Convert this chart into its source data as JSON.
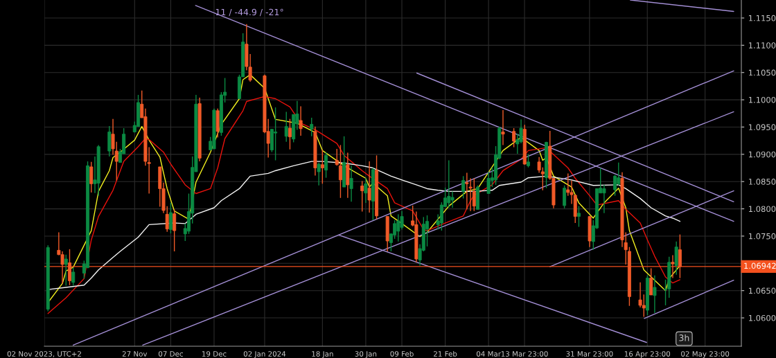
{
  "chart_data": {
    "type": "candlestick",
    "x": [
      "2023-11-03",
      "2023-11-06",
      "2023-11-07",
      "2023-11-08",
      "2023-11-09",
      "2023-11-10",
      "2023-11-13",
      "2023-11-14",
      "2023-11-15",
      "2023-11-16",
      "2023-11-17",
      "2023-11-20",
      "2023-11-21",
      "2023-11-22",
      "2023-11-23",
      "2023-11-24",
      "2023-11-27",
      "2023-11-28",
      "2023-11-29",
      "2023-11-30",
      "2023-12-01",
      "2023-12-04",
      "2023-12-05",
      "2023-12-06",
      "2023-12-07",
      "2023-12-08",
      "2023-12-11",
      "2023-12-12",
      "2023-12-13",
      "2023-12-14",
      "2023-12-15",
      "2023-12-18",
      "2023-12-19",
      "2023-12-20",
      "2023-12-21",
      "2023-12-22",
      "2023-12-26",
      "2023-12-27",
      "2023-12-28",
      "2023-12-29",
      "2024-01-02",
      "2024-01-03",
      "2024-01-04",
      "2024-01-05",
      "2024-01-08",
      "2024-01-09",
      "2024-01-10",
      "2024-01-11",
      "2024-01-12",
      "2024-01-15",
      "2024-01-16",
      "2024-01-17",
      "2024-01-18",
      "2024-01-19",
      "2024-01-22",
      "2024-01-23",
      "2024-01-24",
      "2024-01-25",
      "2024-01-26",
      "2024-01-29",
      "2024-01-30",
      "2024-01-31",
      "2024-02-01",
      "2024-02-02",
      "2024-02-05",
      "2024-02-06",
      "2024-02-07",
      "2024-02-08",
      "2024-02-09",
      "2024-02-12",
      "2024-02-13",
      "2024-02-14",
      "2024-02-15",
      "2024-02-16",
      "2024-02-19",
      "2024-02-20",
      "2024-02-21",
      "2024-02-22",
      "2024-02-23",
      "2024-02-26",
      "2024-02-27",
      "2024-02-28",
      "2024-02-29",
      "2024-03-01",
      "2024-03-04",
      "2024-03-05",
      "2024-03-06",
      "2024-03-07",
      "2024-03-08",
      "2024-03-11",
      "2024-03-12",
      "2024-03-13",
      "2024-03-14",
      "2024-03-15",
      "2024-03-18",
      "2024-03-19",
      "2024-03-20",
      "2024-03-21",
      "2024-03-22",
      "2024-03-25",
      "2024-03-26",
      "2024-03-27",
      "2024-03-28",
      "2024-03-29",
      "2024-04-01",
      "2024-04-02",
      "2024-04-03",
      "2024-04-04",
      "2024-04-05",
      "2024-04-08",
      "2024-04-09",
      "2024-04-10",
      "2024-04-11",
      "2024-04-12",
      "2024-04-15",
      "2024-04-16",
      "2024-04-17",
      "2024-04-18",
      "2024-04-19",
      "2024-04-22",
      "2024-04-23",
      "2024-04-24",
      "2024-04-25",
      "2024-04-26"
    ],
    "ohlc": [
      [
        1.0616,
        1.0733,
        1.0612,
        1.0729
      ],
      [
        1.0724,
        1.0757,
        1.0715,
        1.0716
      ],
      [
        1.0716,
        1.0722,
        1.0663,
        1.0698
      ],
      [
        1.0698,
        1.0716,
        1.0659,
        1.0708
      ],
      [
        1.0701,
        1.0726,
        1.066,
        1.0668
      ],
      [
        1.0665,
        1.0692,
        1.0659,
        1.0684
      ],
      [
        1.0682,
        1.0705,
        1.0672,
        1.0699
      ],
      [
        1.0692,
        1.0887,
        1.0691,
        1.0879
      ],
      [
        1.0877,
        1.0886,
        1.083,
        1.0846
      ],
      [
        1.0846,
        1.0896,
        1.0829,
        1.0853
      ],
      [
        1.0847,
        1.0917,
        1.0824,
        1.0914
      ],
      [
        1.0906,
        1.0952,
        1.0896,
        1.0941
      ],
      [
        1.0937,
        1.0965,
        1.0899,
        1.091
      ],
      [
        1.0906,
        1.0923,
        1.0852,
        1.0887
      ],
      [
        1.0885,
        1.091,
        1.0885,
        1.0905
      ],
      [
        1.0901,
        1.0948,
        1.0901,
        1.0937
      ],
      [
        1.0941,
        1.096,
        1.094,
        1.0953
      ],
      [
        1.0951,
        1.1009,
        1.0951,
        1.0995
      ],
      [
        1.0992,
        1.1017,
        1.0967,
        1.0967
      ],
      [
        1.0969,
        1.0984,
        1.0879,
        1.0887
      ],
      [
        1.0885,
        1.0913,
        1.0828,
        1.0883
      ],
      [
        1.0877,
        1.0877,
        1.0804,
        1.0837
      ],
      [
        1.0837,
        1.0848,
        1.0792,
        1.0797
      ],
      [
        1.079,
        1.0805,
        1.0758,
        1.0763
      ],
      [
        1.0762,
        1.0811,
        1.0755,
        1.0793
      ],
      [
        1.0791,
        1.0799,
        1.0722,
        1.076
      ],
      [
        1.0754,
        1.0773,
        1.0741,
        1.0764
      ],
      [
        1.0759,
        1.0828,
        1.0754,
        1.0795
      ],
      [
        1.0792,
        1.0896,
        1.0773,
        1.0876
      ],
      [
        1.0868,
        1.1009,
        1.0868,
        1.0992
      ],
      [
        1.0993,
        1.1004,
        1.0887,
        1.0893
      ],
      [
        1.0908,
        1.0932,
        1.0908,
        1.0924
      ],
      [
        1.091,
        1.0984,
        1.091,
        1.0981
      ],
      [
        1.098,
        1.0984,
        1.0931,
        1.0942
      ],
      [
        1.094,
        1.1014,
        1.0934,
        1.1009
      ],
      [
        1.1008,
        1.104,
        1.0995,
        1.1014
      ],
      [
        1.1002,
        1.1046,
        1.1002,
        1.1042
      ],
      [
        1.1042,
        1.1122,
        1.1042,
        1.1106
      ],
      [
        1.1102,
        1.1139,
        1.1054,
        1.1061
      ],
      [
        1.106,
        1.1084,
        1.1033,
        1.1036
      ],
      [
        1.1044,
        1.1046,
        1.0939,
        1.0941
      ],
      [
        1.0942,
        1.0965,
        1.0894,
        1.092
      ],
      [
        1.0908,
        1.0946,
        1.0904,
        1.0946
      ],
      [
        1.0939,
        1.0986,
        1.0889,
        1.0941
      ],
      [
        1.0933,
        1.0978,
        1.0923,
        1.0951
      ],
      [
        1.0948,
        1.0965,
        1.0909,
        1.0932
      ],
      [
        1.0928,
        1.0973,
        1.0922,
        1.0973
      ],
      [
        1.0956,
        1.0998,
        1.0945,
        1.0974
      ],
      [
        1.0962,
        1.0988,
        1.0934,
        1.0947
      ],
      [
        1.0946,
        1.0967,
        1.0933,
        1.0955
      ],
      [
        1.0942,
        1.0951,
        1.0861,
        1.0875
      ],
      [
        1.0868,
        1.0885,
        1.0843,
        1.0882
      ],
      [
        1.0881,
        1.0908,
        1.0846,
        1.0875
      ],
      [
        1.0871,
        1.0904,
        1.0857,
        1.0898
      ],
      [
        1.0889,
        1.091,
        1.0879,
        1.0881
      ],
      [
        1.0879,
        1.0917,
        1.082,
        1.0853
      ],
      [
        1.084,
        1.0933,
        1.084,
        1.0885
      ],
      [
        1.0881,
        1.0903,
        1.082,
        1.0844
      ],
      [
        1.0837,
        1.0879,
        1.0813,
        1.0856
      ],
      [
        1.0842,
        1.0851,
        1.0795,
        1.0833
      ],
      [
        1.0829,
        1.0857,
        1.0811,
        1.0846
      ],
      [
        1.0838,
        1.0887,
        1.0793,
        1.0816
      ],
      [
        1.0814,
        1.0875,
        1.0779,
        1.0872
      ],
      [
        1.0871,
        1.0898,
        1.0781,
        1.0787
      ],
      [
        1.0786,
        1.0786,
        1.0722,
        1.0741
      ],
      [
        1.0738,
        1.0755,
        1.0722,
        1.0754
      ],
      [
        1.0752,
        1.0779,
        1.0745,
        1.0773
      ],
      [
        1.0759,
        1.079,
        1.074,
        1.0778
      ],
      [
        1.0766,
        1.0796,
        1.0762,
        1.0786
      ],
      [
        1.0778,
        1.0806,
        1.0768,
        1.077
      ],
      [
        1.0771,
        1.0795,
        1.0702,
        1.0708
      ],
      [
        1.0706,
        1.0735,
        1.0696,
        1.0727
      ],
      [
        1.0724,
        1.0785,
        1.0722,
        1.0772
      ],
      [
        1.0763,
        1.0788,
        1.0731,
        1.0777
      ],
      [
        1.0771,
        1.079,
        1.0762,
        1.0778
      ],
      [
        1.0774,
        1.0812,
        1.076,
        1.0807
      ],
      [
        1.0804,
        1.0839,
        1.0804,
        1.082
      ],
      [
        1.0811,
        1.0889,
        1.0802,
        1.0823
      ],
      [
        1.0816,
        1.0832,
        1.0802,
        1.0821
      ],
      [
        1.0832,
        1.086,
        1.0819,
        1.0852
      ],
      [
        1.0848,
        1.0866,
        1.0799,
        1.0846
      ],
      [
        1.084,
        1.0856,
        1.0796,
        1.0838
      ],
      [
        1.0832,
        1.0856,
        1.0796,
        1.0805
      ],
      [
        1.0799,
        1.0843,
        1.0799,
        1.084
      ],
      [
        1.0828,
        1.0868,
        1.0828,
        1.0856
      ],
      [
        1.0852,
        1.0876,
        1.084,
        1.0857
      ],
      [
        1.0853,
        1.0915,
        1.0844,
        1.0899
      ],
      [
        1.0893,
        1.0951,
        1.0891,
        1.0948
      ],
      [
        1.0941,
        1.0981,
        1.0917,
        1.0937
      ],
      [
        1.0942,
        1.0948,
        1.0913,
        1.0924
      ],
      [
        1.0919,
        1.0938,
        1.0901,
        1.0927
      ],
      [
        1.0923,
        1.0964,
        1.092,
        1.0948
      ],
      [
        1.0946,
        1.0954,
        1.0881,
        1.0882
      ],
      [
        1.0879,
        1.09,
        1.0876,
        1.0886
      ],
      [
        1.0886,
        1.0895,
        1.0866,
        1.0871
      ],
      [
        1.0868,
        1.0876,
        1.0834,
        1.0864
      ],
      [
        1.0857,
        1.0923,
        1.0838,
        1.0922
      ],
      [
        1.0915,
        1.0943,
        1.0853,
        1.0856
      ],
      [
        1.0856,
        1.0856,
        1.0801,
        1.0807
      ],
      [
        1.0806,
        1.0843,
        1.0801,
        1.0838
      ],
      [
        1.0835,
        1.0865,
        1.0824,
        1.083
      ],
      [
        1.083,
        1.0852,
        1.0809,
        1.0826
      ],
      [
        1.0825,
        1.0825,
        1.0774,
        1.0786
      ],
      [
        1.0786,
        1.0805,
        1.0767,
        1.0792
      ],
      [
        1.0786,
        1.0786,
        1.073,
        1.0741
      ],
      [
        1.074,
        1.0779,
        1.0725,
        1.0769
      ],
      [
        1.0765,
        1.0837,
        1.0763,
        1.0837
      ],
      [
        1.0829,
        1.0875,
        1.0829,
        1.0838
      ],
      [
        1.0829,
        1.0844,
        1.0792,
        1.0837
      ],
      [
        1.0835,
        1.0862,
        1.0824,
        1.086
      ],
      [
        1.0846,
        1.0885,
        1.0843,
        1.0857
      ],
      [
        1.0856,
        1.0867,
        1.073,
        1.0743
      ],
      [
        1.0738,
        1.0757,
        1.0698,
        1.0725
      ],
      [
        1.0722,
        1.073,
        1.0622,
        1.0639
      ],
      [
        1.0633,
        1.0665,
        1.0619,
        1.0623
      ],
      [
        1.0623,
        1.0643,
        1.0602,
        1.0618
      ],
      [
        1.0614,
        1.0678,
        1.0605,
        1.0673
      ],
      [
        1.0673,
        1.0691,
        1.0642,
        1.0642
      ],
      [
        1.0641,
        1.0678,
        1.0609,
        1.0656
      ],
      [
        1.0652,
        1.067,
        1.0623,
        1.0653
      ],
      [
        1.0653,
        1.0712,
        1.0637,
        1.0702
      ],
      [
        1.0702,
        1.0715,
        1.0673,
        1.0699
      ],
      [
        1.0696,
        1.074,
        1.0679,
        1.073
      ],
      [
        1.0725,
        1.0753,
        1.0673,
        1.0694
      ]
    ],
    "series": [
      {
        "type": "line",
        "color": "#f2ef1f",
        "x": [
          "2023-11-03",
          "2023-11-07",
          "2023-11-08",
          "2023-11-10",
          "2023-11-15",
          "2023-11-17",
          "2023-11-20",
          "2023-11-21",
          "2023-11-23",
          "2023-11-27",
          "2023-11-29",
          "2023-12-01",
          "2023-12-04",
          "2023-12-06",
          "2023-12-08",
          "2023-12-12",
          "2023-12-14",
          "2023-12-18",
          "2023-12-21",
          "2023-12-26",
          "2023-12-27",
          "2023-12-29",
          "2024-01-02",
          "2024-01-05",
          "2024-01-11",
          "2024-01-16",
          "2024-01-18",
          "2024-01-24",
          "2024-01-30",
          "2024-01-31",
          "2024-02-01",
          "2024-02-05",
          "2024-02-06",
          "2024-02-09",
          "2024-02-14",
          "2024-02-16",
          "2024-02-22",
          "2024-02-27",
          "2024-03-01",
          "2024-03-08",
          "2024-03-13",
          "2024-03-18",
          "2024-03-19",
          "2024-03-20",
          "2024-03-22",
          "2024-03-27",
          "2024-03-29",
          "2024-04-02",
          "2024-04-05",
          "2024-04-09",
          "2024-04-11",
          "2024-04-12",
          "2024-04-16",
          "2024-04-22",
          "2024-04-23",
          "2024-04-26"
        ],
        "values": [
          1.0628,
          1.0663,
          1.0686,
          1.0693,
          1.076,
          1.0832,
          1.087,
          1.0894,
          1.0904,
          1.0926,
          1.0951,
          1.0926,
          1.0895,
          1.0837,
          1.0796,
          1.0781,
          1.0849,
          1.0904,
          1.0955,
          1.1002,
          1.1037,
          1.1046,
          1.1021,
          1.0964,
          1.0957,
          1.094,
          1.0907,
          1.0879,
          1.0856,
          1.084,
          1.0847,
          1.0824,
          1.0787,
          1.0773,
          1.0749,
          1.0757,
          1.0805,
          1.0832,
          1.0837,
          1.0907,
          1.0931,
          1.0907,
          1.0889,
          1.0894,
          1.086,
          1.084,
          1.0811,
          1.0783,
          1.0811,
          1.0838,
          1.0802,
          1.076,
          1.0688,
          1.065,
          1.0672,
          1.0696
        ]
      },
      {
        "type": "line",
        "color": "#e8120c",
        "x": [
          "2023-11-03",
          "2023-11-08",
          "2023-11-13",
          "2023-11-15",
          "2023-11-17",
          "2023-11-21",
          "2023-11-24",
          "2023-11-28",
          "2023-11-30",
          "2023-12-01",
          "2023-12-05",
          "2023-12-07",
          "2023-12-11",
          "2023-12-14",
          "2023-12-18",
          "2023-12-20",
          "2023-12-22",
          "2023-12-27",
          "2023-12-28",
          "2024-01-02",
          "2024-01-05",
          "2024-01-09",
          "2024-01-12",
          "2024-01-16",
          "2024-01-22",
          "2024-01-24",
          "2024-01-29",
          "2024-01-31",
          "2024-02-05",
          "2024-02-07",
          "2024-02-12",
          "2024-02-15",
          "2024-02-16",
          "2024-02-21",
          "2024-02-26",
          "2024-02-28",
          "2024-02-29",
          "2024-03-05",
          "2024-03-08",
          "2024-03-13",
          "2024-03-15",
          "2024-03-20",
          "2024-03-26",
          "2024-03-28",
          "2024-04-01",
          "2024-04-03",
          "2024-04-09",
          "2024-04-11",
          "2024-04-15",
          "2024-04-17",
          "2024-04-19",
          "2024-04-22",
          "2024-04-24",
          "2024-04-26"
        ],
        "values": [
          1.0608,
          1.0637,
          1.0672,
          1.0743,
          1.0786,
          1.0834,
          1.0887,
          1.0914,
          1.0929,
          1.0927,
          1.0904,
          1.0882,
          1.0844,
          1.0828,
          1.0837,
          1.0875,
          1.0929,
          1.098,
          1.0997,
          1.1006,
          1.1002,
          1.0987,
          1.0957,
          1.0945,
          1.092,
          1.0898,
          1.087,
          1.086,
          1.0837,
          1.0811,
          1.0796,
          1.0762,
          1.076,
          1.0774,
          1.0787,
          1.0815,
          1.0825,
          1.0844,
          1.087,
          1.0891,
          1.0907,
          1.0912,
          1.0875,
          1.0856,
          1.0824,
          1.0807,
          1.0815,
          1.0799,
          1.0774,
          1.0743,
          1.0713,
          1.0675,
          1.0664,
          1.067
        ]
      },
      {
        "type": "line",
        "color": "#f4f4f4",
        "x": [
          "2023-11-03",
          "2023-11-08",
          "2023-11-13",
          "2023-11-15",
          "2023-11-17",
          "2023-11-21",
          "2023-11-23",
          "2023-11-28",
          "2023-12-01",
          "2023-12-08",
          "2023-12-11",
          "2023-12-14",
          "2023-12-19",
          "2023-12-21",
          "2023-12-26",
          "2023-12-29",
          "2024-01-03",
          "2024-01-05",
          "2024-01-10",
          "2024-01-15",
          "2024-01-18",
          "2024-01-24",
          "2024-01-29",
          "2024-02-01",
          "2024-02-06",
          "2024-02-09",
          "2024-02-13",
          "2024-02-16",
          "2024-02-19",
          "2024-02-22",
          "2024-02-29",
          "2024-03-05",
          "2024-03-07",
          "2024-03-13",
          "2024-03-15",
          "2024-03-20",
          "2024-03-27",
          "2024-04-02",
          "2024-04-09",
          "2024-04-11",
          "2024-04-15",
          "2024-04-18",
          "2024-04-22",
          "2024-04-24",
          "2024-04-26"
        ],
        "values": [
          1.0652,
          1.0656,
          1.066,
          1.0673,
          1.0688,
          1.0711,
          1.0722,
          1.0748,
          1.0771,
          1.0774,
          1.0773,
          1.079,
          1.0802,
          1.0815,
          1.0837,
          1.086,
          1.0865,
          1.087,
          1.0879,
          1.0887,
          1.0887,
          1.0884,
          1.0879,
          1.0875,
          1.086,
          1.0853,
          1.0844,
          1.0837,
          1.0834,
          1.0832,
          1.0832,
          1.0834,
          1.0843,
          1.0849,
          1.0857,
          1.086,
          1.0853,
          1.0843,
          1.0844,
          1.0837,
          1.0819,
          1.0802,
          1.0787,
          1.0783,
          1.0777
        ]
      },
      {
        "type": "line",
        "color": "#a48fd6",
        "x": [
          "2023-12-13T21:00",
          "2024-05-10T21:00"
        ],
        "values": [
          1.1173,
          1.0777
        ]
      },
      {
        "type": "line",
        "color": "#a48fd6",
        "x": [
          "2024-04-12T06:00",
          "2024-05-10T21:00"
        ],
        "values": [
          1.1183,
          1.1162
        ]
      },
      {
        "type": "line",
        "color": "#a48fd6",
        "x": [
          "2024-01-22T12:00",
          "2024-04-16T18:00"
        ],
        "values": [
          1.0752,
          1.0555
        ]
      },
      {
        "type": "line",
        "color": "#a48fd6",
        "x": [
          "2024-02-13T03:00",
          "2024-05-10T21:00"
        ],
        "values": [
          1.1049,
          1.0813
        ]
      },
      {
        "type": "line",
        "color": "#a48fd6",
        "x": [
          "2023-11-10",
          "2024-05-10T21:00"
        ],
        "values": [
          1.055,
          1.1053
        ]
      },
      {
        "type": "line",
        "color": "#a48fd6",
        "x": [
          "2023-11-29T06:00",
          "2024-05-10T21:00"
        ],
        "values": [
          1.055,
          1.0978
        ]
      },
      {
        "type": "line",
        "color": "#a48fd6",
        "x": [
          "2024-03-21",
          "2024-05-10T21:00"
        ],
        "values": [
          1.0694,
          1.0833
        ]
      },
      {
        "type": "line",
        "color": "#a48fd6",
        "x": [
          "2024-04-16T03:00",
          "2024-05-10T21:00"
        ],
        "values": [
          1.0599,
          1.0669
        ]
      }
    ],
    "xlim": [
      "2023-11-02",
      "2024-05-13"
    ],
    "xticks": [
      {
        "value": "2023-11-02",
        "label": "02 Nov 2023, UTC+2"
      },
      {
        "value": "2023-11-27",
        "label": "27 Nov"
      },
      {
        "value": "2023-12-07",
        "label": "07 Dec"
      },
      {
        "value": "2023-12-19",
        "label": "19 Dec"
      },
      {
        "value": "2024-01-02",
        "label": "02 Jan 2024"
      },
      {
        "value": "2024-01-18",
        "label": "18 Jan"
      },
      {
        "value": "2024-01-30",
        "label": "30 Jan"
      },
      {
        "value": "2024-02-09",
        "label": "09 Feb"
      },
      {
        "value": "2024-02-21",
        "label": "21 Feb"
      },
      {
        "value": "2024-03-04",
        "label": "04 Mar"
      },
      {
        "value": "2024-03-13T23:00",
        "label": "13 Mar 23:00"
      },
      {
        "value": "2024-03-31T23:00",
        "label": "31 Mar 23:00"
      },
      {
        "value": "2024-04-16T23:00",
        "label": "16 Apr 23:00"
      },
      {
        "value": "2024-05-02T23:00",
        "label": "02 May 23:00"
      }
    ],
    "ylim": [
      1.0548,
      1.1183
    ],
    "yticks": [
      {
        "value": 1.06,
        "label": "1.0600"
      },
      {
        "value": 1.065,
        "label": "1.0650"
      },
      {
        "value": 1.07,
        "label": null
      },
      {
        "value": 1.075,
        "label": "1.0750"
      },
      {
        "value": 1.08,
        "label": "1.0800"
      },
      {
        "value": 1.085,
        "label": "1.0850"
      },
      {
        "value": 1.09,
        "label": "1.0900"
      },
      {
        "value": 1.095,
        "label": "1.0950"
      },
      {
        "value": 1.1,
        "label": "1.1000"
      },
      {
        "value": 1.105,
        "label": "1.1050"
      },
      {
        "value": 1.11,
        "label": "1.1100"
      },
      {
        "value": 1.115,
        "label": "1.1150"
      }
    ],
    "ref_lines": [
      {
        "axis": "y",
        "value": 1.06942,
        "label": "1.06942",
        "color": "#f4511e"
      }
    ],
    "annotations": [
      "11 / -44.9 / -21°",
      "3h"
    ],
    "grid": true
  }
}
